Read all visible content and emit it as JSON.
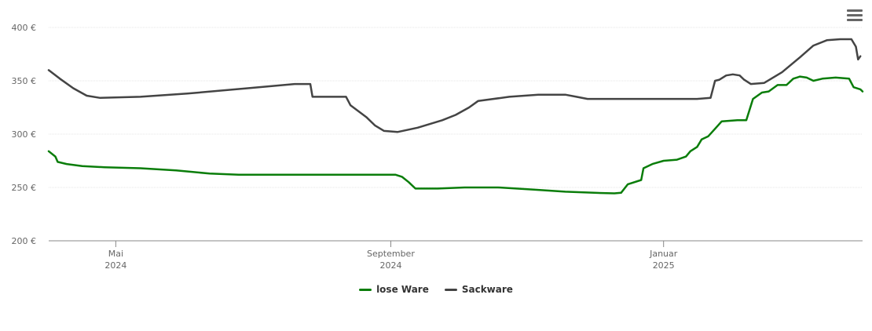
{
  "menu": {
    "icon": "hamburger-menu-icon"
  },
  "chart_data": {
    "type": "line",
    "title": "",
    "xlabel": "",
    "ylabel": "",
    "ylim": [
      200,
      400
    ],
    "yticks": [
      "200 €",
      "250 €",
      "300 €",
      "350 €",
      "400 €"
    ],
    "ytick_values": [
      200,
      250,
      300,
      350,
      400
    ],
    "xlim": [
      "2024-04-01",
      "2025-03-31"
    ],
    "xticks": [
      {
        "date": "2024-05-01",
        "line1": "Mai",
        "line2": "2024"
      },
      {
        "date": "2024-09-01",
        "line1": "September",
        "line2": "2024"
      },
      {
        "date": "2025-01-01",
        "line1": "Januar",
        "line2": "2025"
      }
    ],
    "grid": true,
    "legend_position": "bottom-center",
    "series": [
      {
        "name": "lose Ware",
        "color": "#0a7d0a",
        "points": [
          [
            "2024-04-01",
            284
          ],
          [
            "2024-04-04",
            279
          ],
          [
            "2024-04-05",
            274
          ],
          [
            "2024-04-09",
            272
          ],
          [
            "2024-04-16",
            270
          ],
          [
            "2024-04-26",
            269
          ],
          [
            "2024-05-12",
            268
          ],
          [
            "2024-05-28",
            266
          ],
          [
            "2024-06-12",
            263
          ],
          [
            "2024-06-25",
            262
          ],
          [
            "2024-07-17",
            262
          ],
          [
            "2024-08-30",
            262
          ],
          [
            "2024-09-03",
            262
          ],
          [
            "2024-09-06",
            260
          ],
          [
            "2024-09-09",
            255
          ],
          [
            "2024-09-12",
            249
          ],
          [
            "2024-09-22",
            249
          ],
          [
            "2024-10-04",
            250
          ],
          [
            "2024-10-19",
            250
          ],
          [
            "2024-11-04",
            248
          ],
          [
            "2024-11-18",
            246
          ],
          [
            "2024-12-01",
            245
          ],
          [
            "2024-12-10",
            244.5
          ],
          [
            "2024-12-13",
            245
          ],
          [
            "2024-12-16",
            253
          ],
          [
            "2024-12-22",
            257
          ],
          [
            "2024-12-23",
            268
          ],
          [
            "2024-12-27",
            272
          ],
          [
            "2025-01-01",
            275
          ],
          [
            "2025-01-07",
            276
          ],
          [
            "2025-01-11",
            279
          ],
          [
            "2025-01-13",
            284
          ],
          [
            "2025-01-16",
            288
          ],
          [
            "2025-01-18",
            295
          ],
          [
            "2025-01-21",
            298
          ],
          [
            "2025-01-24",
            305
          ],
          [
            "2025-01-27",
            312
          ],
          [
            "2025-02-03",
            313
          ],
          [
            "2025-02-07",
            313
          ],
          [
            "2025-02-10",
            333
          ],
          [
            "2025-02-14",
            339
          ],
          [
            "2025-02-17",
            340
          ],
          [
            "2025-02-21",
            346
          ],
          [
            "2025-02-25",
            346
          ],
          [
            "2025-02-28",
            352
          ],
          [
            "2025-03-03",
            354
          ],
          [
            "2025-03-06",
            353
          ],
          [
            "2025-03-09",
            350
          ],
          [
            "2025-03-13",
            352
          ],
          [
            "2025-03-19",
            353
          ],
          [
            "2025-03-25",
            352
          ],
          [
            "2025-03-27",
            344
          ],
          [
            "2025-03-30",
            342
          ],
          [
            "2025-03-31",
            340
          ]
        ]
      },
      {
        "name": "Sackware",
        "color": "#444444",
        "points": [
          [
            "2024-04-01",
            360
          ],
          [
            "2024-04-06",
            352
          ],
          [
            "2024-04-12",
            343
          ],
          [
            "2024-04-18",
            336
          ],
          [
            "2024-04-24",
            334
          ],
          [
            "2024-05-12",
            335
          ],
          [
            "2024-06-02",
            338
          ],
          [
            "2024-06-29",
            343
          ],
          [
            "2024-07-20",
            347
          ],
          [
            "2024-07-27",
            347
          ],
          [
            "2024-07-28",
            335
          ],
          [
            "2024-08-09",
            335
          ],
          [
            "2024-08-12",
            335
          ],
          [
            "2024-08-14",
            327
          ],
          [
            "2024-08-21",
            316
          ],
          [
            "2024-08-25",
            308
          ],
          [
            "2024-08-29",
            303
          ],
          [
            "2024-09-04",
            302
          ],
          [
            "2024-09-13",
            306
          ],
          [
            "2024-09-24",
            313
          ],
          [
            "2024-09-30",
            318
          ],
          [
            "2024-10-06",
            325
          ],
          [
            "2024-10-10",
            331
          ],
          [
            "2024-10-24",
            335
          ],
          [
            "2024-11-06",
            337
          ],
          [
            "2024-11-18",
            337
          ],
          [
            "2024-11-23",
            335
          ],
          [
            "2024-11-28",
            333
          ],
          [
            "2024-12-12",
            333
          ],
          [
            "2025-01-01",
            333
          ],
          [
            "2025-01-16",
            333
          ],
          [
            "2025-01-22",
            334
          ],
          [
            "2025-01-24",
            350
          ],
          [
            "2025-01-26",
            351
          ],
          [
            "2025-01-29",
            355
          ],
          [
            "2025-02-01",
            356
          ],
          [
            "2025-02-04",
            355
          ],
          [
            "2025-02-06",
            351
          ],
          [
            "2025-02-09",
            347
          ],
          [
            "2025-02-15",
            348
          ],
          [
            "2025-02-23",
            358
          ],
          [
            "2025-03-03",
            372
          ],
          [
            "2025-03-09",
            383
          ],
          [
            "2025-03-15",
            388
          ],
          [
            "2025-03-21",
            389
          ],
          [
            "2025-03-26",
            389
          ],
          [
            "2025-03-28",
            382
          ],
          [
            "2025-03-29",
            370
          ],
          [
            "2025-03-30",
            373
          ]
        ]
      }
    ]
  }
}
